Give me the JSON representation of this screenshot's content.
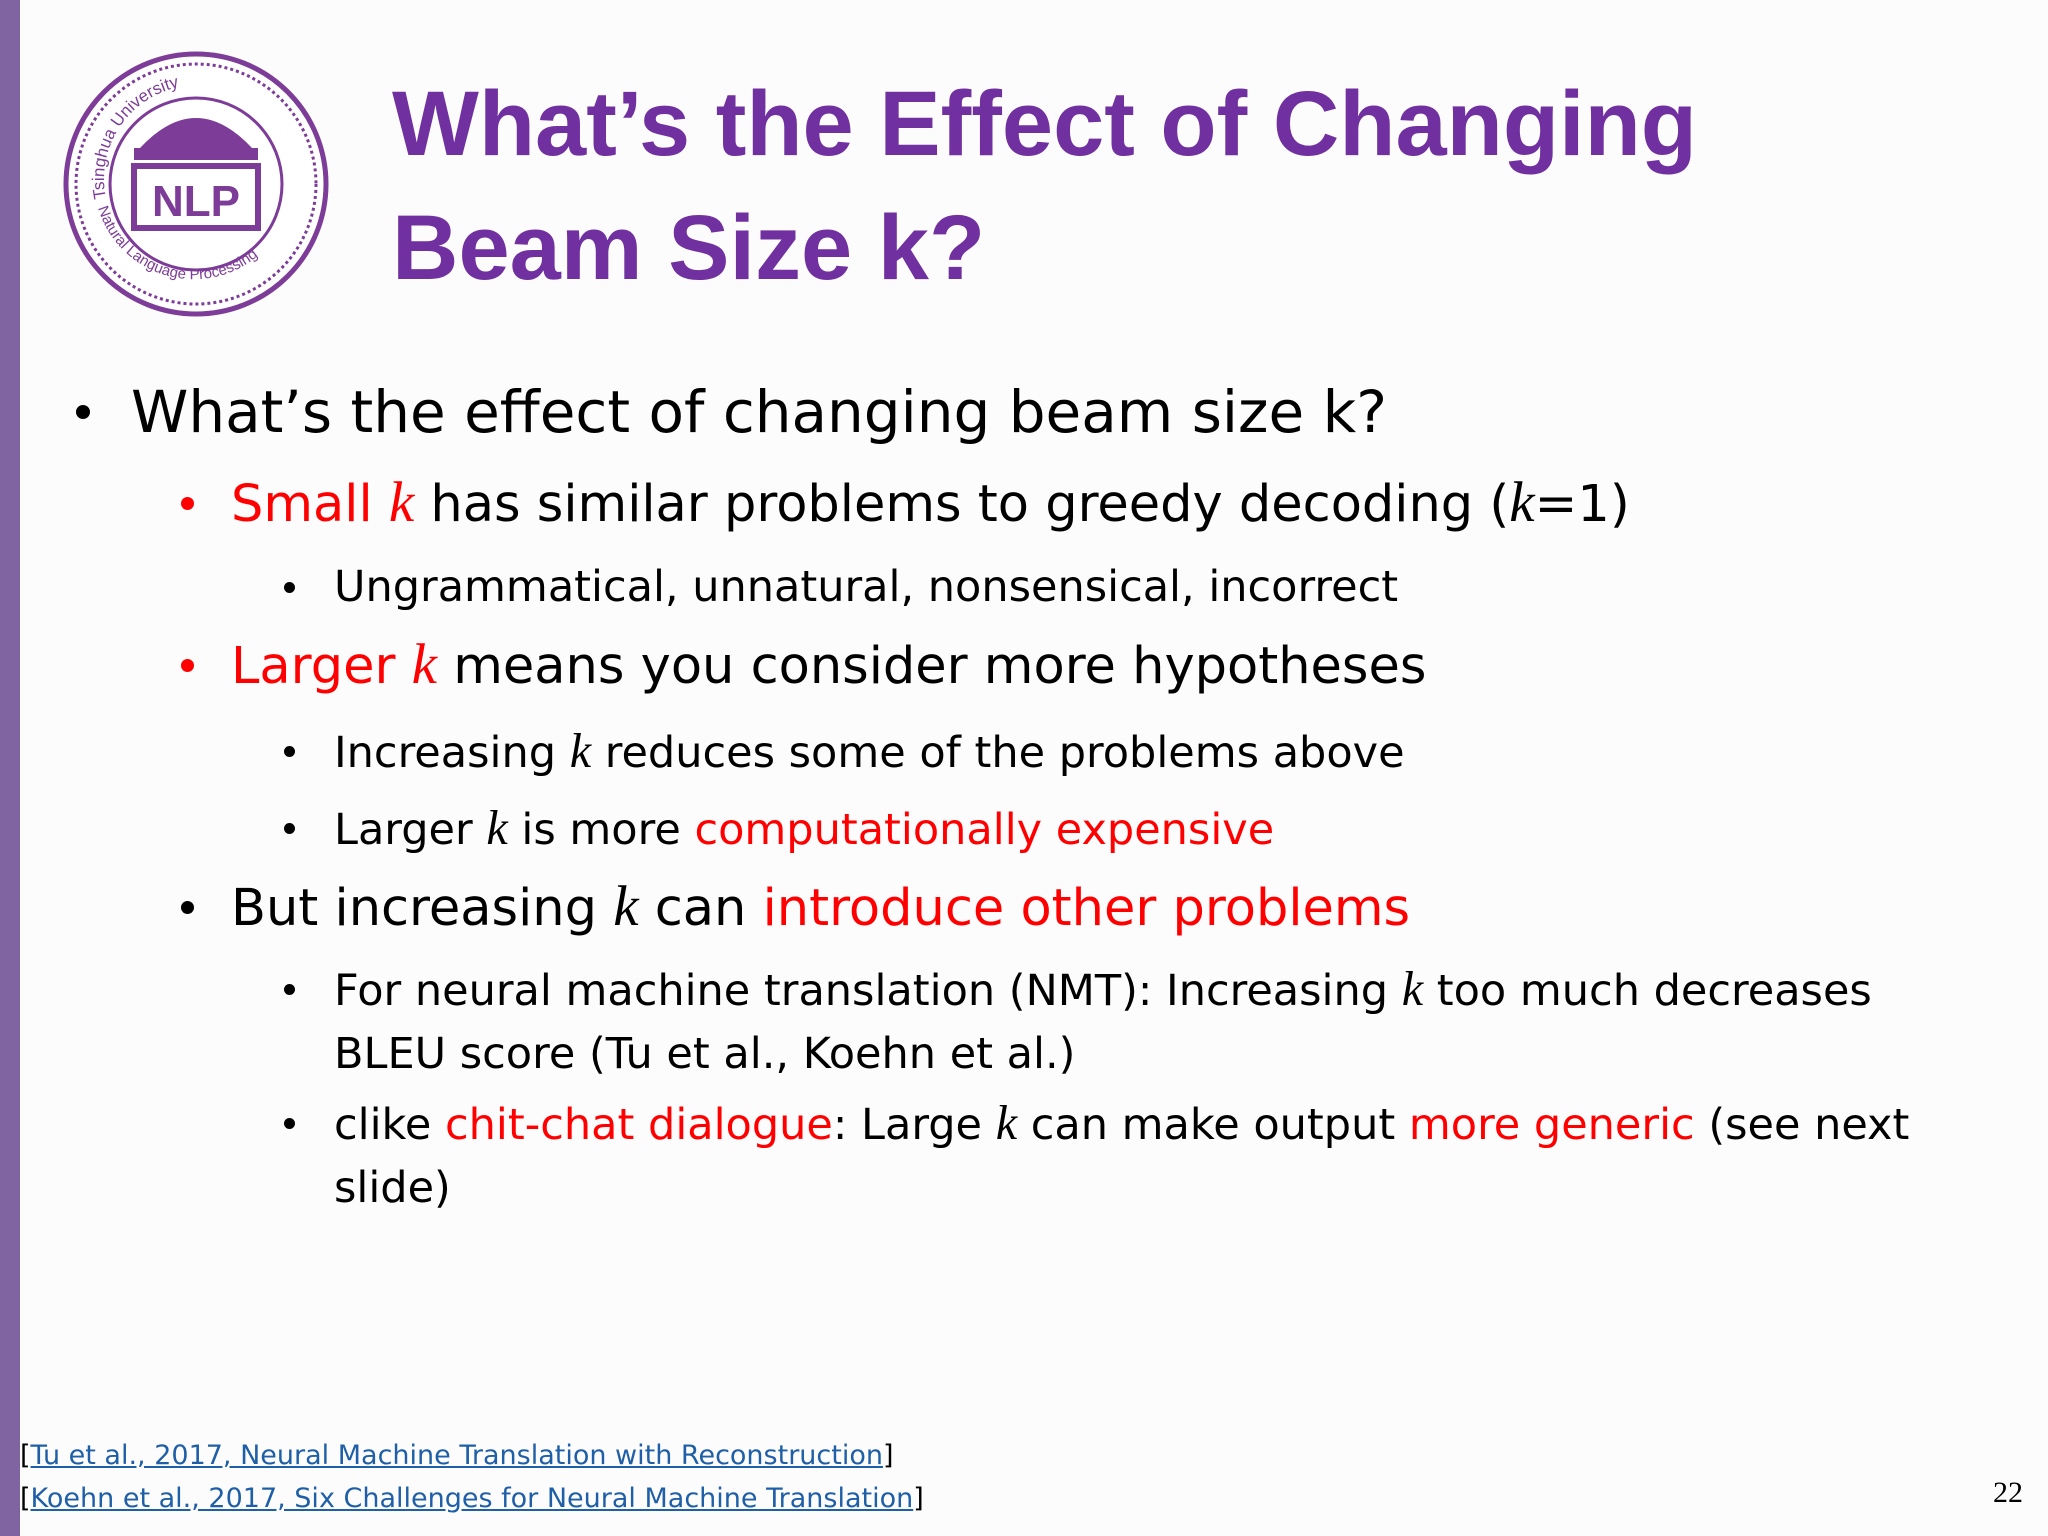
{
  "logo": {
    "top_text": "Tsinghua University",
    "center_text": "NLP",
    "bottom_text": "Natural Language Processing"
  },
  "title": "What’s the Effect of Changing Beam Size k?",
  "items": [
    {
      "level": 1,
      "bullet_color": "#000000",
      "segments": [
        {
          "text": "What’s the effect of changing beam size k?"
        }
      ]
    },
    {
      "level": 2,
      "bullet_color": "#ff0000",
      "segments": [
        {
          "text": "Small ",
          "color": "#ff0000"
        },
        {
          "text": "k",
          "color": "#ff0000",
          "italic": true
        },
        {
          "text": " has similar problems to greedy decoding ("
        },
        {
          "text": "k",
          "italic": true
        },
        {
          "text": "=1)"
        }
      ]
    },
    {
      "level": 3,
      "bullet_color": "#000000",
      "segments": [
        {
          "text": "Ungrammatical, unnatural, nonsensical, incorrect"
        }
      ]
    },
    {
      "level": 2,
      "bullet_color": "#ff0000",
      "segments": [
        {
          "text": "Larger ",
          "color": "#ff0000"
        },
        {
          "text": "k",
          "color": "#ff0000",
          "italic": true
        },
        {
          "text": " means you consider more hypotheses"
        }
      ]
    },
    {
      "level": 3,
      "bullet_color": "#000000",
      "segments": [
        {
          "text": "Increasing "
        },
        {
          "text": "k",
          "italic": true
        },
        {
          "text": " reduces some of the problems above"
        }
      ]
    },
    {
      "level": 3,
      "bullet_color": "#000000",
      "segments": [
        {
          "text": "Larger "
        },
        {
          "text": "k",
          "italic": true
        },
        {
          "text": " is more "
        },
        {
          "text": "computationally expensive",
          "color": "#ff0000"
        }
      ]
    },
    {
      "level": 2,
      "bullet_color": "#000000",
      "segments": [
        {
          "text": "But increasing "
        },
        {
          "text": "k",
          "italic": true
        },
        {
          "text": " can "
        },
        {
          "text": "introduce other problems",
          "color": "#ff0000"
        }
      ]
    },
    {
      "level": 3,
      "bullet_color": "#000000",
      "segments": [
        {
          "text": "For neural machine translation (NMT): Increasing "
        },
        {
          "text": "k",
          "italic": true
        },
        {
          "text": " too much decreases BLEU score (Tu et al., Koehn et al.)"
        }
      ]
    },
    {
      "level": 3,
      "bullet_color": "#000000",
      "segments": [
        {
          "text": "clike "
        },
        {
          "text": "chit-chat dialogue",
          "color": "#ff0000"
        },
        {
          "text": ": Large "
        },
        {
          "text": "k",
          "italic": true
        },
        {
          "text": " can make output "
        },
        {
          "text": "more generic",
          "color": "#ff0000"
        },
        {
          "text": " (see next slide)"
        }
      ]
    }
  ],
  "references": [
    {
      "open": "[",
      "link": "Tu et al., 2017, Neural Machine Translation with Reconstruction",
      "close": "]"
    },
    {
      "open": "[",
      "link": "Koehn et al., 2017, Six Challenges for Neural Machine Translation",
      "close": "]"
    }
  ],
  "page_number": "22"
}
